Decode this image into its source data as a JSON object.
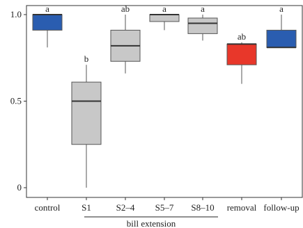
{
  "chart_data": {
    "type": "boxplot",
    "ylim": [
      0,
      1
    ],
    "yticks": [
      0,
      0.5,
      1.0
    ],
    "ytick_labels": [
      "0",
      "0.5",
      "1.0"
    ],
    "categories": [
      "control",
      "S1",
      "S2–4",
      "S5–7",
      "S8–10",
      "removal",
      "follow-up"
    ],
    "boxes": [
      {
        "category": "control",
        "whisker_low": 0.81,
        "q1": 0.91,
        "median": 1.0,
        "q3": 1.0,
        "whisker_high": 1.0,
        "color": "#2a5db0",
        "sig": "a"
      },
      {
        "category": "S1",
        "whisker_low": 0.0,
        "q1": 0.25,
        "median": 0.5,
        "q3": 0.61,
        "whisker_high": 0.71,
        "color": "#c8c8c8",
        "sig": "b"
      },
      {
        "category": "S2–4",
        "whisker_low": 0.66,
        "q1": 0.73,
        "median": 0.82,
        "q3": 0.91,
        "whisker_high": 1.0,
        "color": "#c8c8c8",
        "sig": "ab"
      },
      {
        "category": "S5–7",
        "whisker_low": 0.91,
        "q1": 0.96,
        "median": 1.0,
        "q3": 1.0,
        "whisker_high": 1.0,
        "color": "#c8c8c8",
        "sig": "a"
      },
      {
        "category": "S8–10",
        "whisker_low": 0.85,
        "q1": 0.89,
        "median": 0.95,
        "q3": 0.98,
        "whisker_high": 1.0,
        "color": "#c8c8c8",
        "sig": "a"
      },
      {
        "category": "removal",
        "whisker_low": 0.6,
        "q1": 0.71,
        "median": 0.83,
        "q3": 0.83,
        "whisker_high": 0.84,
        "color": "#e8372a",
        "sig": "ab"
      },
      {
        "category": "follow-up",
        "whisker_low": 0.81,
        "q1": 0.81,
        "median": 0.81,
        "q3": 0.91,
        "whisker_high": 1.0,
        "color": "#2a5db0",
        "sig": "a"
      }
    ],
    "group_label": {
      "text": "bill extension",
      "from": "S1",
      "to": "S8–10"
    },
    "grid": false
  }
}
